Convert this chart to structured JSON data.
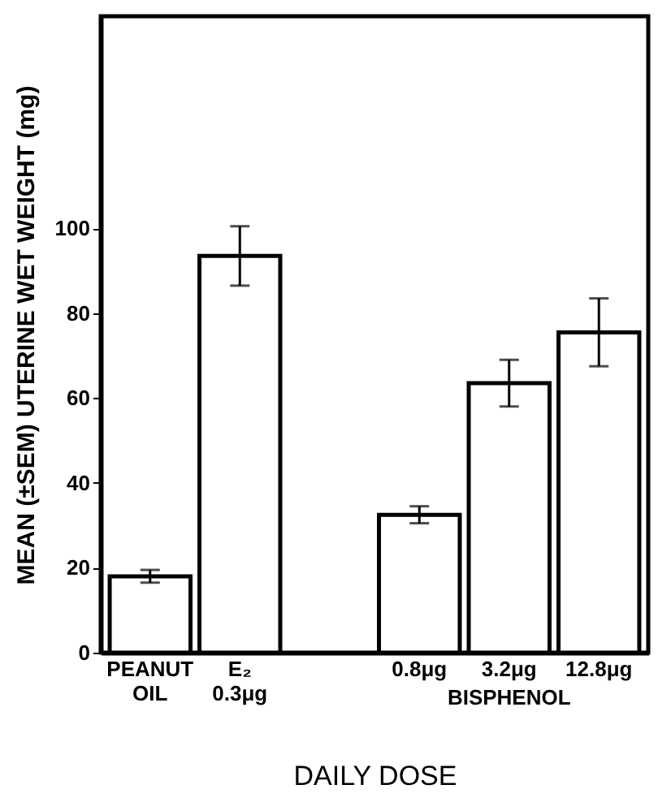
{
  "chart_data": {
    "type": "bar",
    "xlabel": "DAILY DOSE",
    "ylabel": "MEAN (±SEM) UTERINE WET WEIGHT (mg)",
    "categories": [
      "PEANUT\nOIL",
      "E₂\n0.3μg",
      null,
      "0.8μg",
      "3.2μg",
      "12.8μg"
    ],
    "values": [
      18,
      93.5,
      null,
      32.5,
      63.5,
      75.5
    ],
    "errors": [
      1.5,
      7,
      null,
      2,
      5.5,
      8
    ],
    "color": "#ffffff",
    "annotations": [
      "BISPHENOL"
    ],
    "ylim": [
      0,
      150
    ],
    "yticks": [
      0,
      20,
      40,
      60,
      80,
      100
    ],
    "grid": false
  }
}
